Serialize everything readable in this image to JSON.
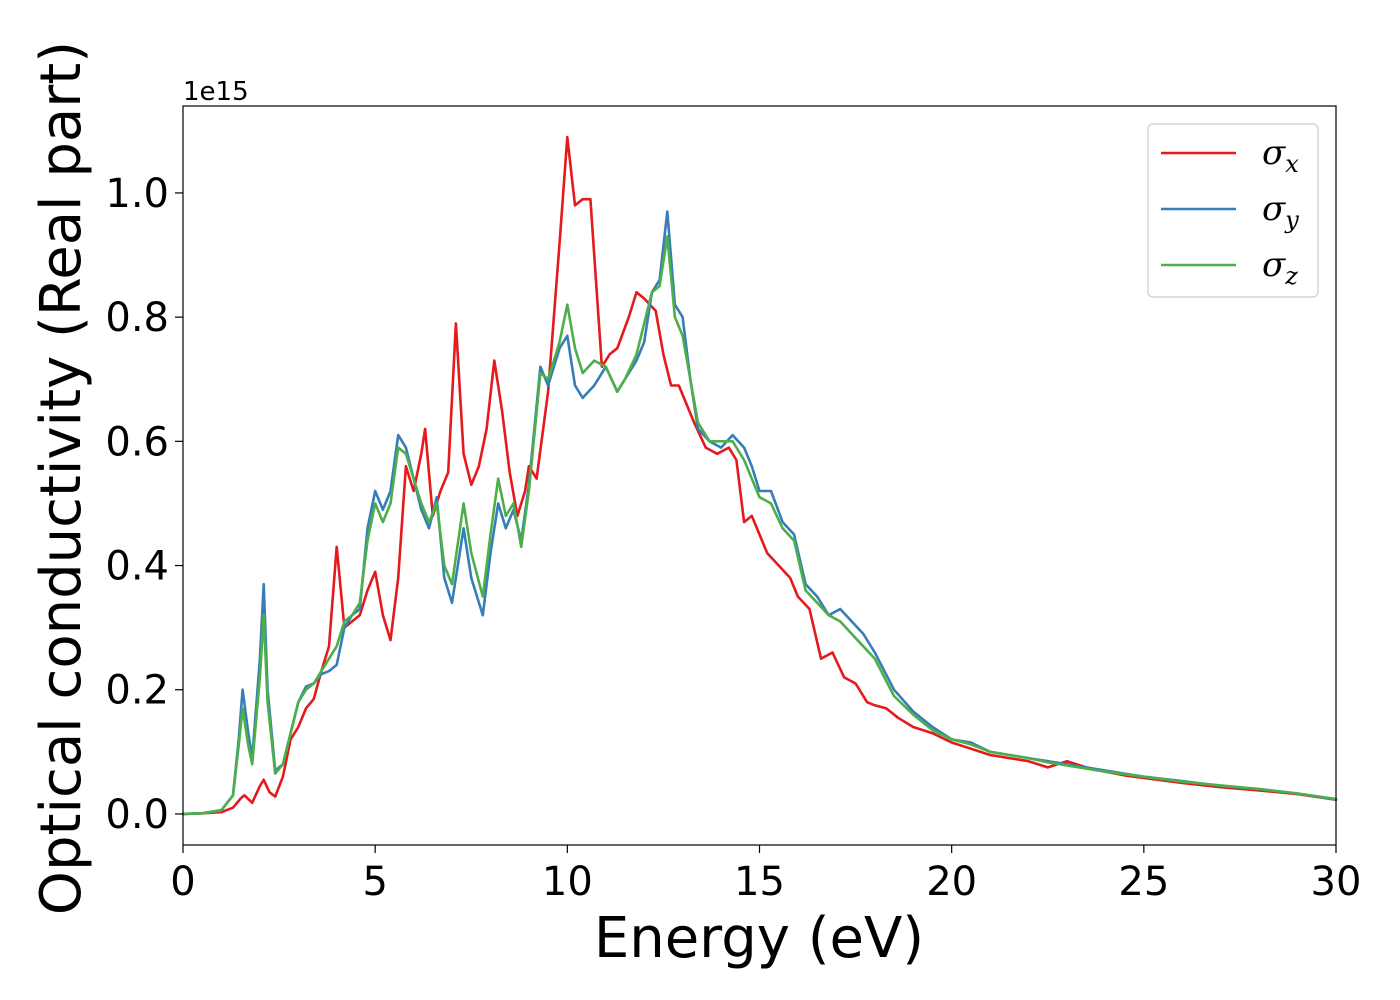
{
  "chart_data": {
    "type": "line",
    "title": "",
    "xlabel": "Energy (eV)",
    "ylabel": "Optical conductivity (Real part)",
    "y_offset_label": "1e15",
    "xlim": [
      0,
      30
    ],
    "ylim": [
      -0.05,
      1.14
    ],
    "xticks": [
      0,
      5,
      10,
      15,
      20,
      25,
      30
    ],
    "xtick_labels": [
      "0",
      "5",
      "10",
      "15",
      "20",
      "25",
      "30"
    ],
    "yticks": [
      0.0,
      0.2,
      0.4,
      0.6,
      0.8,
      1.0
    ],
    "ytick_labels": [
      "0.0",
      "0.2",
      "0.4",
      "0.6",
      "0.8",
      "1.0"
    ],
    "grid": false,
    "legend_position": "top-right",
    "series": [
      {
        "name": "σ",
        "subscript": "x",
        "color": "#e41a1c",
        "points": [
          [
            0,
            0
          ],
          [
            0.5,
            0.001
          ],
          [
            1.0,
            0.003
          ],
          [
            1.3,
            0.01
          ],
          [
            1.5,
            0.025
          ],
          [
            1.6,
            0.03
          ],
          [
            1.8,
            0.018
          ],
          [
            2.0,
            0.045
          ],
          [
            2.1,
            0.055
          ],
          [
            2.25,
            0.035
          ],
          [
            2.4,
            0.028
          ],
          [
            2.6,
            0.06
          ],
          [
            2.8,
            0.12
          ],
          [
            3.0,
            0.14
          ],
          [
            3.2,
            0.17
          ],
          [
            3.4,
            0.185
          ],
          [
            3.6,
            0.23
          ],
          [
            3.8,
            0.27
          ],
          [
            4.0,
            0.43
          ],
          [
            4.2,
            0.3
          ],
          [
            4.4,
            0.31
          ],
          [
            4.6,
            0.32
          ],
          [
            4.8,
            0.36
          ],
          [
            5.0,
            0.39
          ],
          [
            5.2,
            0.32
          ],
          [
            5.4,
            0.28
          ],
          [
            5.6,
            0.38
          ],
          [
            5.8,
            0.56
          ],
          [
            6.0,
            0.52
          ],
          [
            6.2,
            0.58
          ],
          [
            6.3,
            0.62
          ],
          [
            6.5,
            0.48
          ],
          [
            6.7,
            0.52
          ],
          [
            6.9,
            0.55
          ],
          [
            7.1,
            0.79
          ],
          [
            7.3,
            0.58
          ],
          [
            7.5,
            0.53
          ],
          [
            7.7,
            0.56
          ],
          [
            7.9,
            0.62
          ],
          [
            8.1,
            0.73
          ],
          [
            8.3,
            0.65
          ],
          [
            8.5,
            0.55
          ],
          [
            8.7,
            0.48
          ],
          [
            8.9,
            0.52
          ],
          [
            9.0,
            0.56
          ],
          [
            9.2,
            0.54
          ],
          [
            9.5,
            0.68
          ],
          [
            9.8,
            0.92
          ],
          [
            10.0,
            1.09
          ],
          [
            10.2,
            0.98
          ],
          [
            10.4,
            0.99
          ],
          [
            10.6,
            0.99
          ],
          [
            10.9,
            0.72
          ],
          [
            11.1,
            0.74
          ],
          [
            11.3,
            0.75
          ],
          [
            11.6,
            0.8
          ],
          [
            11.8,
            0.84
          ],
          [
            12.0,
            0.83
          ],
          [
            12.3,
            0.81
          ],
          [
            12.5,
            0.74
          ],
          [
            12.7,
            0.69
          ],
          [
            12.9,
            0.69
          ],
          [
            13.1,
            0.66
          ],
          [
            13.3,
            0.63
          ],
          [
            13.6,
            0.59
          ],
          [
            13.9,
            0.58
          ],
          [
            14.2,
            0.59
          ],
          [
            14.4,
            0.57
          ],
          [
            14.6,
            0.47
          ],
          [
            14.8,
            0.48
          ],
          [
            15.0,
            0.45
          ],
          [
            15.2,
            0.42
          ],
          [
            15.5,
            0.4
          ],
          [
            15.8,
            0.38
          ],
          [
            16.0,
            0.35
          ],
          [
            16.3,
            0.33
          ],
          [
            16.6,
            0.25
          ],
          [
            16.9,
            0.26
          ],
          [
            17.2,
            0.22
          ],
          [
            17.5,
            0.21
          ],
          [
            17.8,
            0.18
          ],
          [
            18.0,
            0.175
          ],
          [
            18.3,
            0.17
          ],
          [
            18.6,
            0.155
          ],
          [
            19.0,
            0.14
          ],
          [
            19.5,
            0.13
          ],
          [
            20.0,
            0.115
          ],
          [
            20.5,
            0.105
          ],
          [
            21.0,
            0.095
          ],
          [
            21.5,
            0.09
          ],
          [
            22.0,
            0.085
          ],
          [
            22.5,
            0.075
          ],
          [
            23.0,
            0.085
          ],
          [
            23.5,
            0.075
          ],
          [
            24.0,
            0.068
          ],
          [
            24.5,
            0.062
          ],
          [
            25.0,
            0.058
          ],
          [
            26.0,
            0.05
          ],
          [
            27.0,
            0.043
          ],
          [
            28.0,
            0.038
          ],
          [
            29.0,
            0.032
          ],
          [
            30.0,
            0.023
          ]
        ]
      },
      {
        "name": "σ",
        "subscript": "y",
        "color": "#377eb8",
        "points": [
          [
            0,
            0
          ],
          [
            0.5,
            0.001
          ],
          [
            1.0,
            0.006
          ],
          [
            1.3,
            0.03
          ],
          [
            1.45,
            0.12
          ],
          [
            1.55,
            0.2
          ],
          [
            1.7,
            0.13
          ],
          [
            1.8,
            0.09
          ],
          [
            2.0,
            0.25
          ],
          [
            2.1,
            0.37
          ],
          [
            2.2,
            0.2
          ],
          [
            2.4,
            0.07
          ],
          [
            2.6,
            0.08
          ],
          [
            2.8,
            0.13
          ],
          [
            3.0,
            0.18
          ],
          [
            3.2,
            0.205
          ],
          [
            3.4,
            0.21
          ],
          [
            3.6,
            0.225
          ],
          [
            3.8,
            0.23
          ],
          [
            4.0,
            0.24
          ],
          [
            4.2,
            0.3
          ],
          [
            4.4,
            0.32
          ],
          [
            4.6,
            0.33
          ],
          [
            4.8,
            0.46
          ],
          [
            5.0,
            0.52
          ],
          [
            5.2,
            0.49
          ],
          [
            5.4,
            0.52
          ],
          [
            5.6,
            0.61
          ],
          [
            5.8,
            0.59
          ],
          [
            6.0,
            0.54
          ],
          [
            6.2,
            0.49
          ],
          [
            6.4,
            0.46
          ],
          [
            6.6,
            0.51
          ],
          [
            6.8,
            0.38
          ],
          [
            7.0,
            0.34
          ],
          [
            7.3,
            0.46
          ],
          [
            7.5,
            0.38
          ],
          [
            7.8,
            0.32
          ],
          [
            8.0,
            0.42
          ],
          [
            8.2,
            0.5
          ],
          [
            8.4,
            0.46
          ],
          [
            8.6,
            0.49
          ],
          [
            8.8,
            0.44
          ],
          [
            9.0,
            0.53
          ],
          [
            9.3,
            0.72
          ],
          [
            9.5,
            0.69
          ],
          [
            9.8,
            0.75
          ],
          [
            10.0,
            0.77
          ],
          [
            10.2,
            0.69
          ],
          [
            10.4,
            0.67
          ],
          [
            10.7,
            0.69
          ],
          [
            11.0,
            0.72
          ],
          [
            11.3,
            0.68
          ],
          [
            11.5,
            0.7
          ],
          [
            11.8,
            0.73
          ],
          [
            12.0,
            0.76
          ],
          [
            12.2,
            0.84
          ],
          [
            12.4,
            0.86
          ],
          [
            12.6,
            0.97
          ],
          [
            12.8,
            0.82
          ],
          [
            13.0,
            0.8
          ],
          [
            13.2,
            0.7
          ],
          [
            13.4,
            0.62
          ],
          [
            13.7,
            0.6
          ],
          [
            14.0,
            0.59
          ],
          [
            14.3,
            0.61
          ],
          [
            14.6,
            0.59
          ],
          [
            14.8,
            0.56
          ],
          [
            15.0,
            0.52
          ],
          [
            15.3,
            0.52
          ],
          [
            15.6,
            0.47
          ],
          [
            15.9,
            0.45
          ],
          [
            16.2,
            0.37
          ],
          [
            16.5,
            0.35
          ],
          [
            16.8,
            0.32
          ],
          [
            17.1,
            0.33
          ],
          [
            17.4,
            0.31
          ],
          [
            17.7,
            0.29
          ],
          [
            18.0,
            0.26
          ],
          [
            18.5,
            0.2
          ],
          [
            19.0,
            0.165
          ],
          [
            19.5,
            0.14
          ],
          [
            20.0,
            0.12
          ],
          [
            20.5,
            0.115
          ],
          [
            21.0,
            0.1
          ],
          [
            21.5,
            0.095
          ],
          [
            22.0,
            0.09
          ],
          [
            22.5,
            0.085
          ],
          [
            23.0,
            0.08
          ],
          [
            23.5,
            0.075
          ],
          [
            24.0,
            0.07
          ],
          [
            24.5,
            0.065
          ],
          [
            25.0,
            0.06
          ],
          [
            26.0,
            0.053
          ],
          [
            27.0,
            0.045
          ],
          [
            28.0,
            0.04
          ],
          [
            29.0,
            0.033
          ],
          [
            30.0,
            0.023
          ]
        ]
      },
      {
        "name": "σ",
        "subscript": "z",
        "color": "#4daf4a",
        "points": [
          [
            0,
            0
          ],
          [
            0.5,
            0.001
          ],
          [
            1.0,
            0.006
          ],
          [
            1.3,
            0.03
          ],
          [
            1.45,
            0.11
          ],
          [
            1.55,
            0.17
          ],
          [
            1.7,
            0.11
          ],
          [
            1.8,
            0.08
          ],
          [
            2.0,
            0.22
          ],
          [
            2.1,
            0.32
          ],
          [
            2.2,
            0.18
          ],
          [
            2.4,
            0.065
          ],
          [
            2.6,
            0.08
          ],
          [
            2.8,
            0.13
          ],
          [
            3.0,
            0.18
          ],
          [
            3.2,
            0.2
          ],
          [
            3.4,
            0.21
          ],
          [
            3.6,
            0.23
          ],
          [
            3.8,
            0.25
          ],
          [
            4.0,
            0.27
          ],
          [
            4.2,
            0.31
          ],
          [
            4.4,
            0.32
          ],
          [
            4.6,
            0.34
          ],
          [
            4.8,
            0.44
          ],
          [
            5.0,
            0.5
          ],
          [
            5.2,
            0.47
          ],
          [
            5.4,
            0.5
          ],
          [
            5.6,
            0.59
          ],
          [
            5.8,
            0.58
          ],
          [
            6.0,
            0.54
          ],
          [
            6.2,
            0.5
          ],
          [
            6.4,
            0.47
          ],
          [
            6.6,
            0.5
          ],
          [
            6.8,
            0.4
          ],
          [
            7.0,
            0.37
          ],
          [
            7.3,
            0.5
          ],
          [
            7.5,
            0.42
          ],
          [
            7.8,
            0.35
          ],
          [
            8.0,
            0.45
          ],
          [
            8.2,
            0.54
          ],
          [
            8.4,
            0.48
          ],
          [
            8.6,
            0.5
          ],
          [
            8.8,
            0.43
          ],
          [
            9.0,
            0.52
          ],
          [
            9.3,
            0.71
          ],
          [
            9.5,
            0.7
          ],
          [
            9.8,
            0.76
          ],
          [
            10.0,
            0.82
          ],
          [
            10.2,
            0.75
          ],
          [
            10.4,
            0.71
          ],
          [
            10.7,
            0.73
          ],
          [
            11.0,
            0.72
          ],
          [
            11.3,
            0.68
          ],
          [
            11.5,
            0.7
          ],
          [
            11.8,
            0.74
          ],
          [
            12.0,
            0.79
          ],
          [
            12.2,
            0.84
          ],
          [
            12.4,
            0.85
          ],
          [
            12.6,
            0.93
          ],
          [
            12.8,
            0.8
          ],
          [
            13.0,
            0.77
          ],
          [
            13.2,
            0.7
          ],
          [
            13.4,
            0.63
          ],
          [
            13.7,
            0.6
          ],
          [
            14.0,
            0.6
          ],
          [
            14.3,
            0.6
          ],
          [
            14.6,
            0.57
          ],
          [
            14.8,
            0.54
          ],
          [
            15.0,
            0.51
          ],
          [
            15.3,
            0.5
          ],
          [
            15.6,
            0.46
          ],
          [
            15.9,
            0.44
          ],
          [
            16.2,
            0.36
          ],
          [
            16.5,
            0.34
          ],
          [
            16.8,
            0.32
          ],
          [
            17.1,
            0.31
          ],
          [
            17.4,
            0.29
          ],
          [
            17.7,
            0.27
          ],
          [
            18.0,
            0.25
          ],
          [
            18.5,
            0.19
          ],
          [
            19.0,
            0.16
          ],
          [
            19.5,
            0.135
          ],
          [
            20.0,
            0.12
          ],
          [
            20.5,
            0.112
          ],
          [
            21.0,
            0.1
          ],
          [
            21.5,
            0.095
          ],
          [
            22.0,
            0.09
          ],
          [
            22.5,
            0.083
          ],
          [
            23.0,
            0.078
          ],
          [
            23.5,
            0.073
          ],
          [
            24.0,
            0.068
          ],
          [
            24.5,
            0.064
          ],
          [
            25.0,
            0.06
          ],
          [
            26.0,
            0.052
          ],
          [
            27.0,
            0.046
          ],
          [
            28.0,
            0.04
          ],
          [
            29.0,
            0.033
          ],
          [
            30.0,
            0.024
          ]
        ]
      }
    ]
  }
}
